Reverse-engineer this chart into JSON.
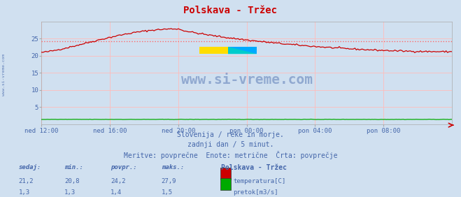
{
  "title": "Polskava - Tržec",
  "bg_color": "#d0e0f0",
  "grid_color": "#ffbbbb",
  "x_tick_labels": [
    "ned 12:00",
    "ned 16:00",
    "ned 20:00",
    "pon 00:00",
    "pon 04:00",
    "pon 08:00"
  ],
  "x_tick_positions": [
    0,
    48,
    96,
    144,
    192,
    240
  ],
  "total_points": 289,
  "ylim": [
    0,
    30
  ],
  "yticks": [
    5,
    10,
    15,
    20,
    25
  ],
  "temp_avg": 24.2,
  "temp_min": 20.8,
  "temp_max": 27.9,
  "temp_current": 21.2,
  "flow_avg": 1.4,
  "flow_min": 1.3,
  "flow_max": 1.5,
  "flow_current": 1.3,
  "temp_color": "#cc0000",
  "flow_color": "#00aa00",
  "avg_line_color": "#ff6666",
  "subtitle1": "Slovenija / reke in morje.",
  "subtitle2": "zadnji dan / 5 minut.",
  "subtitle3": "Meritve: povprečne  Enote: metrične  Črta: povprečje",
  "watermark": "www.si-vreme.com",
  "left_watermark": "www.si-vreme.com",
  "label_sedaj": "sedaj:",
  "label_min": "min.:",
  "label_povpr": "povpr.:",
  "label_maks": "maks.:",
  "legend_title": "Polskava - Tržec",
  "legend_temp": "temperatura[C]",
  "legend_flow": "pretok[m3/s]",
  "text_color": "#4466aa",
  "font_family": "monospace"
}
